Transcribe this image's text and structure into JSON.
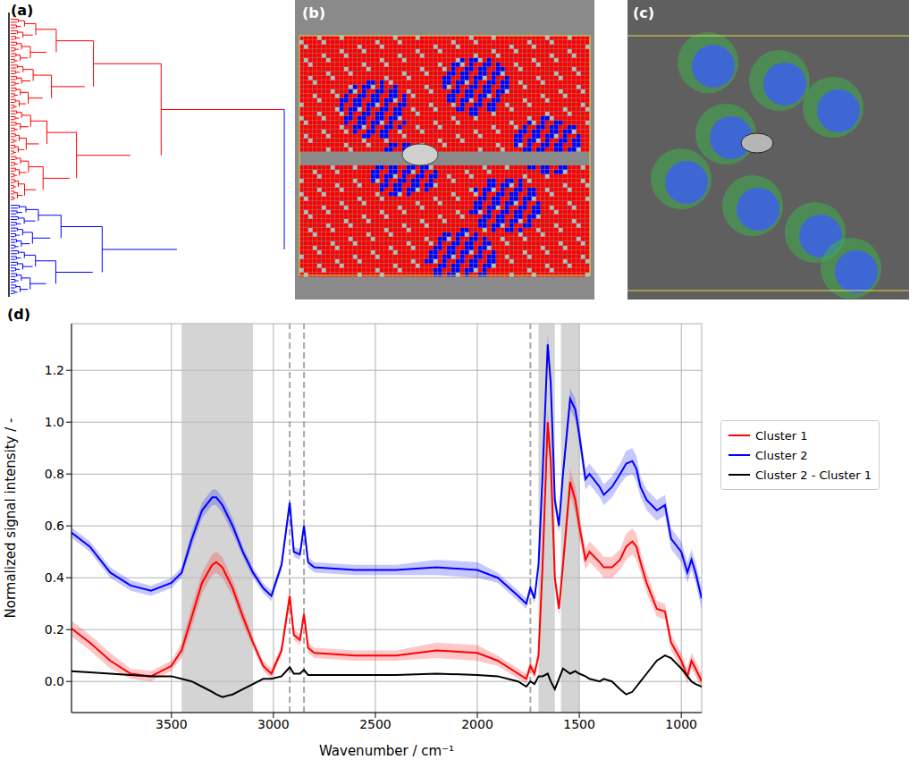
{
  "panel_labels": [
    "(a)",
    "(b)",
    "(c)",
    "(d)"
  ],
  "chart_data": {
    "type": "line",
    "x_label": "Wavenumber / cm⁻¹",
    "y_label": "Normalized signal intensity / -",
    "x": [
      4000,
      3900,
      3800,
      3700,
      3600,
      3500,
      3450,
      3400,
      3350,
      3300,
      3280,
      3250,
      3200,
      3150,
      3100,
      3050,
      3010,
      2960,
      2920,
      2900,
      2870,
      2850,
      2830,
      2800,
      2600,
      2400,
      2200,
      2000,
      1900,
      1800,
      1760,
      1740,
      1720,
      1700,
      1680,
      1655,
      1640,
      1620,
      1600,
      1580,
      1545,
      1520,
      1500,
      1470,
      1450,
      1400,
      1380,
      1340,
      1300,
      1270,
      1240,
      1220,
      1200,
      1170,
      1120,
      1080,
      1050,
      1000,
      970,
      950,
      930,
      900
    ],
    "series": [
      {
        "name": "Cluster 1",
        "color": "#ff0000",
        "values": [
          0.21,
          0.15,
          0.08,
          0.03,
          0.02,
          0.06,
          0.12,
          0.25,
          0.38,
          0.45,
          0.46,
          0.44,
          0.36,
          0.25,
          0.15,
          0.06,
          0.03,
          0.12,
          0.33,
          0.18,
          0.16,
          0.26,
          0.13,
          0.11,
          0.1,
          0.1,
          0.12,
          0.11,
          0.08,
          0.03,
          0.01,
          0.06,
          0.03,
          0.1,
          0.45,
          1.0,
          0.85,
          0.4,
          0.28,
          0.45,
          0.77,
          0.7,
          0.6,
          0.47,
          0.5,
          0.46,
          0.44,
          0.44,
          0.47,
          0.52,
          0.54,
          0.52,
          0.46,
          0.38,
          0.28,
          0.27,
          0.15,
          0.08,
          0.02,
          0.08,
          0.05,
          0.0
        ],
        "errors": [
          0.03,
          0.03,
          0.03,
          0.02,
          0.02,
          0.02,
          0.03,
          0.04,
          0.04,
          0.04,
          0.04,
          0.04,
          0.03,
          0.03,
          0.02,
          0.02,
          0.02,
          0.02,
          0.03,
          0.02,
          0.02,
          0.02,
          0.02,
          0.02,
          0.02,
          0.02,
          0.03,
          0.03,
          0.02,
          0.02,
          0.02,
          0.02,
          0.02,
          0.02,
          0.03,
          0.05,
          0.04,
          0.03,
          0.03,
          0.04,
          0.05,
          0.05,
          0.05,
          0.04,
          0.04,
          0.04,
          0.04,
          0.04,
          0.04,
          0.05,
          0.05,
          0.05,
          0.04,
          0.04,
          0.03,
          0.03,
          0.03,
          0.03,
          0.03,
          0.03,
          0.03,
          0.03
        ]
      },
      {
        "name": "Cluster 2",
        "color": "#0000ff",
        "values": [
          0.58,
          0.52,
          0.42,
          0.37,
          0.35,
          0.38,
          0.42,
          0.55,
          0.66,
          0.71,
          0.71,
          0.68,
          0.6,
          0.5,
          0.42,
          0.36,
          0.33,
          0.45,
          0.69,
          0.5,
          0.49,
          0.6,
          0.46,
          0.44,
          0.43,
          0.43,
          0.44,
          0.43,
          0.4,
          0.33,
          0.3,
          0.36,
          0.32,
          0.45,
          0.8,
          1.3,
          1.15,
          0.7,
          0.6,
          0.8,
          1.09,
          1.05,
          0.95,
          0.78,
          0.8,
          0.75,
          0.72,
          0.75,
          0.8,
          0.84,
          0.85,
          0.82,
          0.75,
          0.7,
          0.66,
          0.68,
          0.55,
          0.5,
          0.42,
          0.47,
          0.42,
          0.32
        ],
        "errors": [
          0.02,
          0.02,
          0.02,
          0.02,
          0.02,
          0.02,
          0.02,
          0.03,
          0.03,
          0.03,
          0.03,
          0.03,
          0.03,
          0.02,
          0.02,
          0.02,
          0.02,
          0.02,
          0.02,
          0.02,
          0.02,
          0.02,
          0.02,
          0.02,
          0.02,
          0.02,
          0.03,
          0.03,
          0.02,
          0.02,
          0.02,
          0.02,
          0.02,
          0.02,
          0.03,
          0.04,
          0.04,
          0.03,
          0.03,
          0.03,
          0.04,
          0.04,
          0.04,
          0.04,
          0.04,
          0.04,
          0.04,
          0.04,
          0.04,
          0.05,
          0.05,
          0.05,
          0.04,
          0.04,
          0.04,
          0.04,
          0.04,
          0.04,
          0.04,
          0.04,
          0.04,
          0.04
        ]
      },
      {
        "name": "Cluster 2 - Cluster 1",
        "color": "#000000",
        "values": [
          0.04,
          0.035,
          0.03,
          0.025,
          0.02,
          0.02,
          0.01,
          0.0,
          -0.02,
          -0.04,
          -0.05,
          -0.06,
          -0.05,
          -0.03,
          -0.01,
          0.01,
          0.01,
          0.02,
          0.055,
          0.03,
          0.03,
          0.045,
          0.025,
          0.025,
          0.025,
          0.025,
          0.03,
          0.025,
          0.02,
          0.0,
          -0.02,
          0.0,
          -0.01,
          0.02,
          0.02,
          0.03,
          0.0,
          -0.03,
          0.01,
          0.05,
          0.03,
          0.04,
          0.03,
          0.02,
          0.01,
          0.0,
          0.01,
          0.0,
          -0.03,
          -0.05,
          -0.04,
          -0.02,
          0.0,
          0.03,
          0.08,
          0.1,
          0.09,
          0.05,
          0.02,
          0.0,
          -0.01,
          -0.02
        ]
      }
    ],
    "xlim": [
      3990,
      900
    ],
    "xticks": [
      3500,
      3000,
      2500,
      2000,
      1500,
      1000
    ],
    "ylim": [
      -0.12,
      1.38
    ],
    "yticks": [
      {
        "value": 0,
        "label": "0.0"
      },
      0.2,
      0.4,
      0.6,
      0.8,
      {
        "value": 1,
        "label": "1.0"
      },
      1.2
    ],
    "shaded_ranges": [
      [
        3450,
        3100
      ],
      [
        1700,
        1620
      ],
      [
        1590,
        1500
      ]
    ],
    "reference_lines": [
      2920,
      2850,
      1740
    ],
    "grid": true,
    "legend": "right"
  }
}
